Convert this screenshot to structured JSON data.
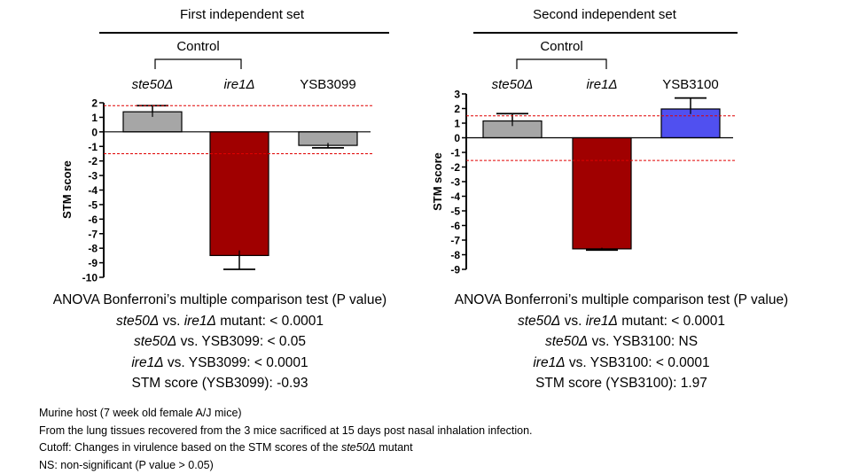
{
  "chart_data": [
    {
      "type": "bar",
      "title": "First independent set",
      "bracket_label": "Control",
      "categories": [
        "ste50Δ",
        "ire1Δ",
        "YSB3099"
      ],
      "categories_italic": [
        true,
        true,
        false
      ],
      "values": [
        1.38,
        -8.5,
        -0.93
      ],
      "errors": [
        0.42,
        0.95,
        0.17
      ],
      "colors": [
        "#a6a6a6",
        "#a00000",
        "#a6a6a6"
      ],
      "ylabel": "STM score",
      "ylim": [
        -10,
        2
      ],
      "yticks": [
        "2",
        "1",
        "0",
        "-1",
        "-2",
        "-3",
        "-4",
        "-5",
        "-6",
        "-7",
        "-8",
        "-9",
        "-10"
      ],
      "cutoff": [
        1.8,
        -1.5
      ],
      "cutoff_color": "#e00000"
    },
    {
      "type": "bar",
      "title": "Second independent set",
      "bracket_label": "Control",
      "categories": [
        "ste50Δ",
        "ire1Δ",
        "YSB3100"
      ],
      "categories_italic": [
        true,
        true,
        false
      ],
      "values": [
        1.15,
        -7.6,
        1.97
      ],
      "errors": [
        0.5,
        0.08,
        0.75
      ],
      "colors": [
        "#a6a6a6",
        "#a00000",
        "#5050f0"
      ],
      "ylabel": "STM score",
      "ylim": [
        -9,
        3
      ],
      "yticks": [
        "3",
        "2",
        "1",
        "0",
        "-1",
        "-2",
        "-3",
        "-4",
        "-5",
        "-6",
        "-7",
        "-8",
        "-9"
      ],
      "cutoff": [
        1.5,
        -1.55
      ],
      "cutoff_color": "#e00000"
    }
  ],
  "stats_left": {
    "heading": "ANOVA Bonferroni’s multiple comparison test (P value)",
    "l1_a": "ste50Δ",
    "l1_b": " vs. ",
    "l1_c": "ire1Δ",
    "l1_d": " mutant: < 0.0001",
    "l2_a": "ste50Δ",
    "l2_b": " vs. YSB3099: < 0.05",
    "l3_a": "ire1Δ",
    "l3_b": " vs. YSB3099: < 0.0001",
    "l4": "STM score (YSB3099): -0.93"
  },
  "stats_right": {
    "heading": "ANOVA Bonferroni’s multiple comparison test (P value)",
    "l1_a": "ste50Δ",
    "l1_b": " vs. ",
    "l1_c": "ire1Δ",
    "l1_d": " mutant: < 0.0001",
    "l2_a": "ste50Δ",
    "l2_b": " vs. YSB3100:  NS",
    "l3_a": "ire1Δ",
    "l3_b": " vs. YSB3100: < 0.0001",
    "l4": "STM score (YSB3100): 1.97"
  },
  "footnotes": {
    "line1": "Murine host (7 week old female A/J mice)",
    "line2": "From  the lung tissues recovered from the 3 mice sacrificed at 15 days post nasal inhalation infection.",
    "line3_a": "Cutoff: Changes in virulence based on the STM scores of the ",
    "line3_b": "ste50Δ",
    "line3_c": " mutant",
    "line4": "NS: non-significant (P value > 0.05)"
  }
}
